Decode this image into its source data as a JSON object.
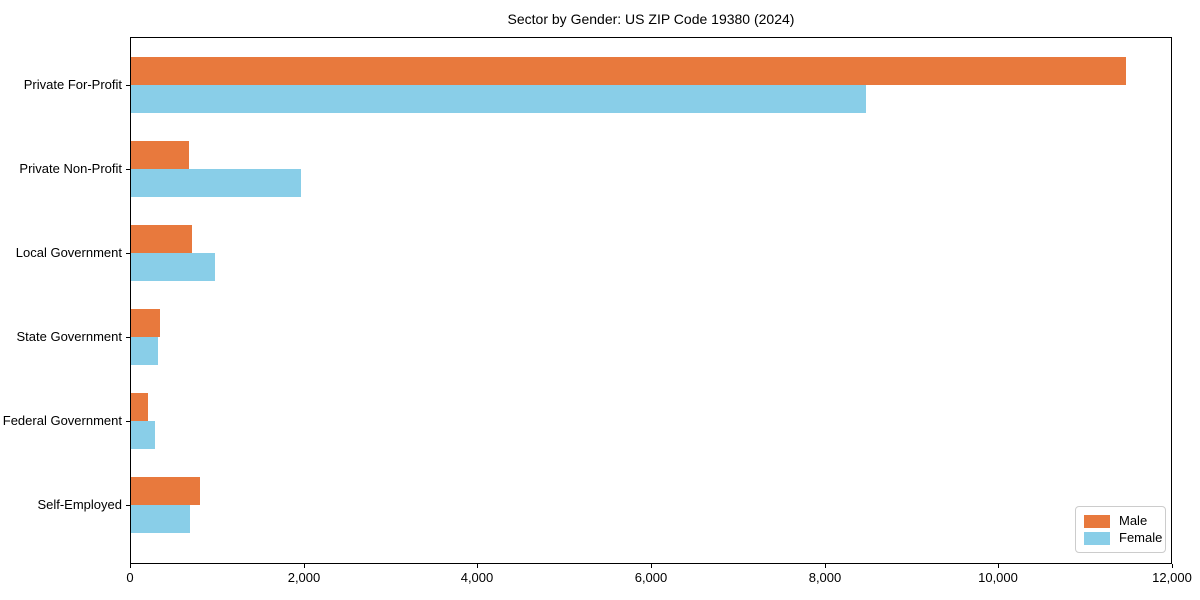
{
  "title": "Sector by Gender: US ZIP Code 19380 (2024)",
  "chart_data": {
    "type": "bar",
    "orientation": "horizontal",
    "title": "Sector by Gender: US ZIP Code 19380 (2024)",
    "xlabel": "",
    "ylabel": "",
    "grid": false,
    "categories": [
      "Private For-Profit",
      "Private Non-Profit",
      "Local Government",
      "State Government",
      "Federal Government",
      "Self-Employed"
    ],
    "series": [
      {
        "name": "Male",
        "color": "#e8793d",
        "values": [
          11460,
          670,
          705,
          335,
          195,
          800
        ]
      },
      {
        "name": "Female",
        "color": "#89cee8",
        "values": [
          8460,
          1960,
          970,
          310,
          275,
          680
        ]
      }
    ],
    "xlim": [
      0,
      12000
    ],
    "xticks": [
      0,
      2000,
      4000,
      6000,
      8000,
      10000,
      12000
    ],
    "xtick_labels": [
      "0",
      "2,000",
      "4,000",
      "6,000",
      "8,000",
      "10,000",
      "12,000"
    ],
    "legend": {
      "position": "lower right",
      "entries": [
        "Male",
        "Female"
      ]
    }
  }
}
